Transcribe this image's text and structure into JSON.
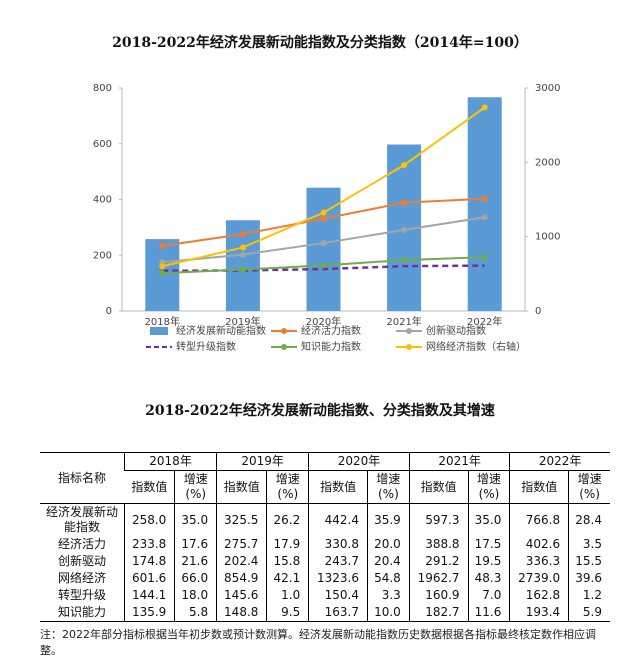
{
  "chart_data": {
    "type": "bar",
    "title": "2018-2022年经济发展新动能指数及分类指数（2014年=100）",
    "categories": [
      "2018年",
      "2019年",
      "2020年",
      "2021年",
      "2022年"
    ],
    "series": [
      {
        "name": "经济发展新动能指数",
        "type": "bar",
        "color": "#5b9bd5",
        "values": [
          258.0,
          325.5,
          442.4,
          597.3,
          766.8
        ]
      },
      {
        "name": "经济活力指数",
        "type": "line",
        "color": "#ed7d31",
        "values": [
          233.8,
          275.7,
          330.8,
          388.8,
          402.6
        ]
      },
      {
        "name": "创新驱动指数",
        "type": "line",
        "color": "#a5a5a5",
        "values": [
          174.8,
          202.4,
          243.7,
          291.2,
          336.3
        ]
      },
      {
        "name": "转型升级指数",
        "type": "line",
        "color": "#7030a0",
        "dash": true,
        "values": [
          144.1,
          145.6,
          150.4,
          160.9,
          162.8
        ]
      },
      {
        "name": "知识能力指数",
        "type": "line",
        "color": "#70ad47",
        "values": [
          135.9,
          148.8,
          163.7,
          182.7,
          193.4
        ]
      },
      {
        "name": "网络经济指数（右轴）",
        "type": "line",
        "color": "#ffc000",
        "axis": "y2",
        "values": [
          601.6,
          854.9,
          1323.6,
          1962.7,
          2739.0
        ]
      }
    ],
    "ylim": [
      0,
      800
    ],
    "yticks": [
      0,
      200,
      400,
      600,
      800
    ],
    "y2lim": [
      0,
      3000
    ],
    "y2ticks": [
      0,
      1000,
      2000,
      3000
    ]
  },
  "table": {
    "title": "2018-2022年经济发展新动能指数、分类指数及其增速",
    "header": [
      "指标名称",
      "2018年",
      "2019年",
      "2020年",
      "2021年",
      "2022年"
    ],
    "subheader": [
      "指数值",
      "增速\n(%)",
      "指数值",
      "增速\n(%)",
      "指数值",
      "增速\n(%)",
      "指数值",
      "增速\n(%)",
      "指数值",
      "增速\n(%)"
    ],
    "rows": [
      [
        "经济发展新动能指数",
        "258.0",
        "35.0",
        "325.5",
        "26.2",
        "442.4",
        "35.9",
        "597.3",
        "35.0",
        "766.8",
        "28.4"
      ],
      [
        "经济活力",
        "233.8",
        "17.6",
        "275.7",
        "17.9",
        "330.8",
        "20.0",
        "388.8",
        "17.5",
        "402.6",
        "3.5"
      ],
      [
        "创新驱动",
        "174.8",
        "21.6",
        "202.4",
        "15.8",
        "243.7",
        "20.4",
        "291.2",
        "19.5",
        "336.3",
        "15.5"
      ],
      [
        "网络经济",
        "601.6",
        "66.0",
        "854.9",
        "42.1",
        "1323.6",
        "54.8",
        "1962.7",
        "48.3",
        "2739.0",
        "39.6"
      ],
      [
        "转型升级",
        "144.1",
        "18.0",
        "145.6",
        "1.0",
        "150.4",
        "3.3",
        "160.9",
        "7.0",
        "162.8",
        "1.2"
      ],
      [
        "知识能力",
        "135.9",
        "5.8",
        "148.8",
        "9.5",
        "163.7",
        "10.0",
        "182.7",
        "11.6",
        "193.4",
        "5.9"
      ]
    ]
  },
  "note": "注：2022年部分指标根据当年初步数或预计数测算。经济发展新动能指数历史数据根据各指标最终核定数作相应调整。"
}
